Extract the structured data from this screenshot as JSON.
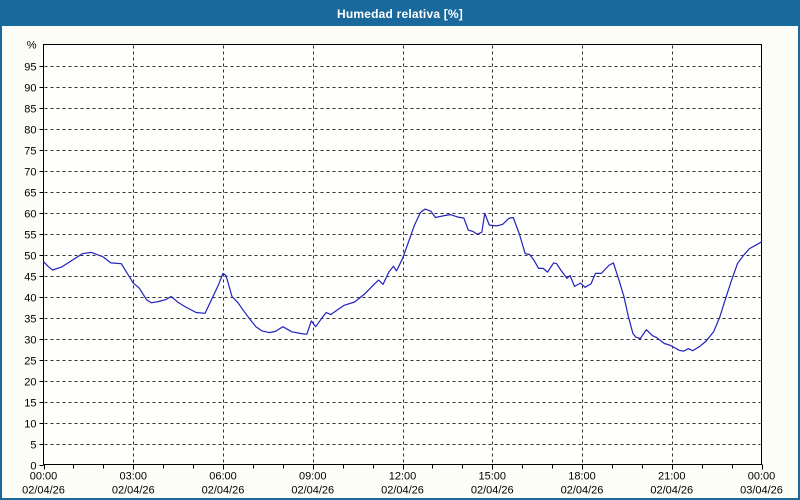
{
  "window": {
    "title": "Humedad relativa [%]"
  },
  "colors": {
    "titlebar_bg": "#1a699c",
    "frame_border": "#1a699c",
    "content_bg": "#fdfdf7",
    "plot_bg": "#fefefc",
    "axis": "#000000",
    "grid": "#303030",
    "line": "#2222bd",
    "label_text": "#000000",
    "title_text": "#ffffff"
  },
  "chart_data": {
    "type": "line",
    "title": "Humedad relativa [%]",
    "ylabel": "%",
    "ylim": [
      0,
      100
    ],
    "ytick_step": 5,
    "y_tick_labels": [
      "0",
      "5",
      "10",
      "15",
      "20",
      "25",
      "30",
      "35",
      "40",
      "45",
      "50",
      "55",
      "60",
      "65",
      "70",
      "75",
      "80",
      "85",
      "90",
      "95"
    ],
    "y_unit_label": "%",
    "xlim_hours": [
      0,
      24
    ],
    "x_minor_tick_step_hours": 1,
    "x_major_tick_hours": [
      0,
      3,
      6,
      9,
      12,
      15,
      18,
      21,
      24
    ],
    "x_tick_labels": [
      {
        "time": "00:00",
        "date": "02/04/26"
      },
      {
        "time": "03:00",
        "date": "02/04/26"
      },
      {
        "time": "06:00",
        "date": "02/04/26"
      },
      {
        "time": "09:00",
        "date": "02/04/26"
      },
      {
        "time": "12:00",
        "date": "02/04/26"
      },
      {
        "time": "15:00",
        "date": "02/04/26"
      },
      {
        "time": "18:00",
        "date": "02/04/26"
      },
      {
        "time": "21:00",
        "date": "02/04/26"
      },
      {
        "time": "00:00",
        "date": "03/04/26"
      }
    ],
    "grid": true,
    "grid_style": "dashed",
    "legend": "none",
    "series": [
      {
        "name": "Humedad relativa",
        "color": "#2222bd",
        "points": [
          [
            0,
            48.3
          ],
          [
            0.15,
            47.2
          ],
          [
            0.3,
            46.3
          ],
          [
            0.6,
            47
          ],
          [
            1,
            48.8
          ],
          [
            1.3,
            50.2
          ],
          [
            1.6,
            50.5
          ],
          [
            2,
            49.4
          ],
          [
            2.25,
            48
          ],
          [
            2.6,
            47.8
          ],
          [
            2.8,
            45.5
          ],
          [
            3,
            43.2
          ],
          [
            3.2,
            42
          ],
          [
            3.45,
            39.2
          ],
          [
            3.6,
            38.5
          ],
          [
            3.85,
            38.8
          ],
          [
            4.1,
            39.3
          ],
          [
            4.27,
            40
          ],
          [
            4.5,
            38.6
          ],
          [
            4.75,
            37.5
          ],
          [
            5.1,
            36.2
          ],
          [
            5.4,
            36
          ],
          [
            5.7,
            40.5
          ],
          [
            5.85,
            42.8
          ],
          [
            6,
            45.5
          ],
          [
            6.1,
            45
          ],
          [
            6.3,
            40
          ],
          [
            6.5,
            38.5
          ],
          [
            6.7,
            36.5
          ],
          [
            6.9,
            34.6
          ],
          [
            7.1,
            32.8
          ],
          [
            7.3,
            31.8
          ],
          [
            7.55,
            31.4
          ],
          [
            7.75,
            31.7
          ],
          [
            8,
            32.8
          ],
          [
            8.3,
            31.6
          ],
          [
            8.6,
            31.2
          ],
          [
            8.8,
            31
          ],
          [
            8.95,
            34.2
          ],
          [
            9.1,
            32.8
          ],
          [
            9.3,
            34.8
          ],
          [
            9.45,
            36.2
          ],
          [
            9.6,
            35.7
          ],
          [
            9.8,
            36.7
          ],
          [
            10.05,
            37.9
          ],
          [
            10.4,
            38.7
          ],
          [
            10.75,
            40.7
          ],
          [
            11.05,
            42.9
          ],
          [
            11.2,
            43.9
          ],
          [
            11.35,
            42.9
          ],
          [
            11.55,
            45.9
          ],
          [
            11.7,
            47.2
          ],
          [
            11.8,
            46.1
          ],
          [
            12,
            49
          ],
          [
            12.2,
            53
          ],
          [
            12.4,
            57
          ],
          [
            12.6,
            60
          ],
          [
            12.75,
            60.8
          ],
          [
            12.95,
            60.3
          ],
          [
            13.1,
            58.8
          ],
          [
            13.35,
            59.2
          ],
          [
            13.6,
            59.5
          ],
          [
            13.85,
            58.9
          ],
          [
            14.05,
            58.7
          ],
          [
            14.2,
            55.8
          ],
          [
            14.35,
            55.5
          ],
          [
            14.5,
            54.8
          ],
          [
            14.65,
            55.3
          ],
          [
            14.75,
            59.8
          ],
          [
            14.9,
            57
          ],
          [
            15.15,
            56.8
          ],
          [
            15.35,
            57.2
          ],
          [
            15.55,
            58.6
          ],
          [
            15.7,
            58.8
          ],
          [
            15.9,
            55
          ],
          [
            16.1,
            50.2
          ],
          [
            16.25,
            50
          ],
          [
            16.4,
            48.6
          ],
          [
            16.55,
            46.7
          ],
          [
            16.7,
            46.7
          ],
          [
            16.85,
            45.8
          ],
          [
            17.05,
            48
          ],
          [
            17.15,
            47.8
          ],
          [
            17.3,
            46.2
          ],
          [
            17.5,
            44.3
          ],
          [
            17.6,
            45
          ],
          [
            17.75,
            42.4
          ],
          [
            17.95,
            43.2
          ],
          [
            18.1,
            42.2
          ],
          [
            18.3,
            43
          ],
          [
            18.45,
            45.5
          ],
          [
            18.65,
            45.5
          ],
          [
            18.9,
            47.4
          ],
          [
            19.05,
            48
          ],
          [
            19.25,
            43.6
          ],
          [
            19.4,
            40
          ],
          [
            19.55,
            35.2
          ],
          [
            19.7,
            31.2
          ],
          [
            19.8,
            30.3
          ],
          [
            19.95,
            30
          ],
          [
            20.15,
            32.1
          ],
          [
            20.35,
            30.7
          ],
          [
            20.5,
            30.2
          ],
          [
            20.75,
            28.8
          ],
          [
            20.9,
            28.5
          ],
          [
            21,
            28.2
          ],
          [
            21.25,
            27.2
          ],
          [
            21.4,
            27
          ],
          [
            21.55,
            27.6
          ],
          [
            21.7,
            27.1
          ],
          [
            21.95,
            28.2
          ],
          [
            22.15,
            29.4
          ],
          [
            22.4,
            31.6
          ],
          [
            22.6,
            35
          ],
          [
            22.8,
            39.5
          ],
          [
            23,
            43.9
          ],
          [
            23.2,
            47.9
          ],
          [
            23.4,
            49.8
          ],
          [
            23.6,
            51.4
          ],
          [
            23.8,
            52.2
          ],
          [
            24,
            53
          ]
        ]
      }
    ]
  }
}
